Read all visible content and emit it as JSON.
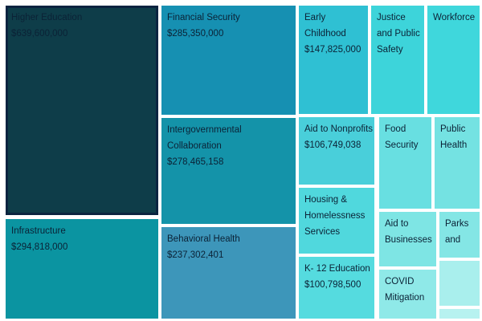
{
  "colors": {
    "background": "#ffffff",
    "selection_border": "#0b2440",
    "label_text": "#0b2236"
  },
  "chart_data": {
    "type": "treemap",
    "legend": "none",
    "value_format": "USD",
    "cells": [
      {
        "label": "Higher Education",
        "value_display": "$639,600,000",
        "value": 639600000,
        "color": "#0e3d49",
        "selected": true
      },
      {
        "label": "Infrastructure",
        "value_display": "$294,818,000",
        "value": 294818000,
        "color": "#0b94a1"
      },
      {
        "label": "Financial Security",
        "value_display": "$285,350,000",
        "value": 285350000,
        "color": "#1690b2"
      },
      {
        "label": "Intergovernmental Collaboration",
        "value_display": "$278,465,158",
        "value": 278465158,
        "color": "#1493a9"
      },
      {
        "label": "Behavioral Health",
        "value_display": "$237,302,401",
        "value": 237302401,
        "color": "#3d96ba"
      },
      {
        "label": "Early Childhood",
        "value_display": "$147,825,000",
        "value": 147825000,
        "color": "#2fc0d3"
      },
      {
        "label": "Justice and Public Safety",
        "value_display": "",
        "color": "#3dd4da"
      },
      {
        "label": "Workforce",
        "value_display": "",
        "color": "#3fd7dc"
      },
      {
        "label": "Aid to Nonprofits",
        "value_display": "$106,749,038",
        "value": 106749038,
        "color": "#49cfda"
      },
      {
        "label": "Housing & Homelessness Services",
        "value_display": "",
        "color": "#50d8dd"
      },
      {
        "label": "K- 12 Education",
        "value_display": "$100,798,500",
        "value": 100798500,
        "color": "#55dbdf"
      },
      {
        "label": "Food Security",
        "value_display": "",
        "color": "#68dfe1"
      },
      {
        "label": "Public Health",
        "value_display": "",
        "color": "#74e2e2"
      },
      {
        "label": "Aid to Businesses",
        "value_display": "",
        "color": "#7ee5e4"
      },
      {
        "label": "Parks and",
        "value_display": "",
        "color": "#84e6e5"
      },
      {
        "label": "COVID Mitigation",
        "value_display": "",
        "color": "#8fe9e8"
      },
      {
        "label": "",
        "value_display": "",
        "color": "#a9efed"
      },
      {
        "label": "",
        "value_display": "",
        "color": "#b7f2f0"
      }
    ]
  }
}
